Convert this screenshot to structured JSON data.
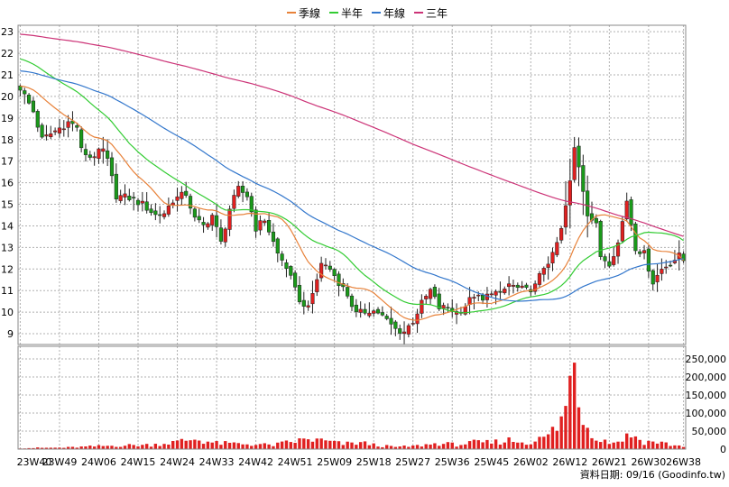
{
  "chart_data": {
    "type": "candlestick",
    "legend": [
      {
        "name": "季線",
        "color": "#e8823a"
      },
      {
        "name": "半年",
        "color": "#33cc33"
      },
      {
        "name": "年線",
        "color": "#3377cc"
      },
      {
        "name": "三年",
        "color": "#cc3377"
      }
    ],
    "price_axis": {
      "min": 8.5,
      "max": 23.3,
      "ticks": [
        9,
        10,
        11,
        12,
        13,
        14,
        15,
        16,
        17,
        18,
        19,
        20,
        21,
        22,
        23
      ]
    },
    "volume_axis": {
      "min": 0,
      "max": 285000,
      "ticks": [
        0,
        50000,
        100000,
        150000,
        200000,
        250000
      ],
      "tick_labels": [
        "0",
        "50,000",
        "100,000",
        "150,000",
        "200,000",
        "250,000"
      ]
    },
    "x_ticks": [
      "23W40",
      "23W49",
      "24W06",
      "24W15",
      "24W24",
      "24W33",
      "24W42",
      "24W51",
      "25W09",
      "25W18",
      "25W27",
      "25W36",
      "25W45",
      "26W02",
      "26W12",
      "26W21",
      "26W30",
      "26W38"
    ],
    "x_tick_index": [
      0,
      9,
      18,
      27,
      36,
      45,
      54,
      63,
      72,
      81,
      90,
      99,
      108,
      117,
      126,
      135,
      144,
      152
    ],
    "credit": "資料日期: 09/16 (Goodinfo.tw)",
    "price_anchors": [
      [
        0,
        20.4
      ],
      [
        3,
        19.3
      ],
      [
        5,
        18.0
      ],
      [
        8,
        18.4
      ],
      [
        11,
        18.8
      ],
      [
        13,
        18.6
      ],
      [
        14,
        17.5
      ],
      [
        16,
        17.2
      ],
      [
        19,
        17.5
      ],
      [
        20,
        17.0
      ],
      [
        22,
        15.4
      ],
      [
        25,
        15.3
      ],
      [
        28,
        15.0
      ],
      [
        31,
        14.5
      ],
      [
        33,
        14.6
      ],
      [
        35,
        15.2
      ],
      [
        38,
        15.5
      ],
      [
        40,
        14.3
      ],
      [
        42,
        14.0
      ],
      [
        44,
        14.5
      ],
      [
        46,
        13.2
      ],
      [
        48,
        14.8
      ],
      [
        50,
        15.7
      ],
      [
        52,
        15.4
      ],
      [
        54,
        13.9
      ],
      [
        56,
        14.3
      ],
      [
        59,
        12.7
      ],
      [
        61,
        12.1
      ],
      [
        63,
        11.0
      ],
      [
        65,
        10.2
      ],
      [
        67,
        10.7
      ],
      [
        69,
        12.3
      ],
      [
        71,
        12.0
      ],
      [
        73,
        11.4
      ],
      [
        75,
        10.8
      ],
      [
        77,
        9.9
      ],
      [
        80,
        10.1
      ],
      [
        82,
        10.0
      ],
      [
        84,
        9.6
      ],
      [
        86,
        9.2
      ],
      [
        88,
        9.1
      ],
      [
        90,
        9.6
      ],
      [
        92,
        10.4
      ],
      [
        94,
        11.0
      ],
      [
        96,
        10.2
      ],
      [
        98,
        10.2
      ],
      [
        100,
        10.0
      ],
      [
        102,
        10.3
      ],
      [
        104,
        10.8
      ],
      [
        106,
        10.5
      ],
      [
        108,
        11.0
      ],
      [
        110,
        10.8
      ],
      [
        112,
        11.3
      ],
      [
        114,
        11.1
      ],
      [
        116,
        11.0
      ],
      [
        118,
        11.2
      ],
      [
        120,
        12.1
      ],
      [
        122,
        12.6
      ],
      [
        124,
        13.8
      ],
      [
        126,
        16.0
      ],
      [
        127,
        17.6
      ],
      [
        128,
        16.8
      ],
      [
        130,
        14.6
      ],
      [
        132,
        14.0
      ],
      [
        133,
        12.6
      ],
      [
        135,
        12.3
      ],
      [
        137,
        13.2
      ],
      [
        139,
        15.2
      ],
      [
        141,
        13.0
      ],
      [
        143,
        12.7
      ],
      [
        145,
        11.4
      ],
      [
        147,
        12.0
      ],
      [
        149,
        12.3
      ],
      [
        151,
        12.6
      ],
      [
        152,
        12.4
      ]
    ],
    "volume_anchors": [
      [
        0,
        3000
      ],
      [
        10,
        4000
      ],
      [
        20,
        9000
      ],
      [
        30,
        12000
      ],
      [
        36,
        20000
      ],
      [
        40,
        28000
      ],
      [
        45,
        16000
      ],
      [
        50,
        15000
      ],
      [
        58,
        11000
      ],
      [
        62,
        20000
      ],
      [
        66,
        27000
      ],
      [
        70,
        22000
      ],
      [
        74,
        14000
      ],
      [
        78,
        18000
      ],
      [
        82,
        10000
      ],
      [
        86,
        6000
      ],
      [
        90,
        8000
      ],
      [
        96,
        16000
      ],
      [
        100,
        12000
      ],
      [
        104,
        18000
      ],
      [
        108,
        18000
      ],
      [
        112,
        25000
      ],
      [
        116,
        18000
      ],
      [
        120,
        30000
      ],
      [
        123,
        60000
      ],
      [
        125,
        110000
      ],
      [
        127,
        270000
      ],
      [
        129,
        80000
      ],
      [
        131,
        50000
      ],
      [
        133,
        25000
      ],
      [
        136,
        18000
      ],
      [
        140,
        40000
      ],
      [
        143,
        20000
      ],
      [
        146,
        20000
      ],
      [
        150,
        10000
      ],
      [
        152,
        8000
      ]
    ]
  }
}
